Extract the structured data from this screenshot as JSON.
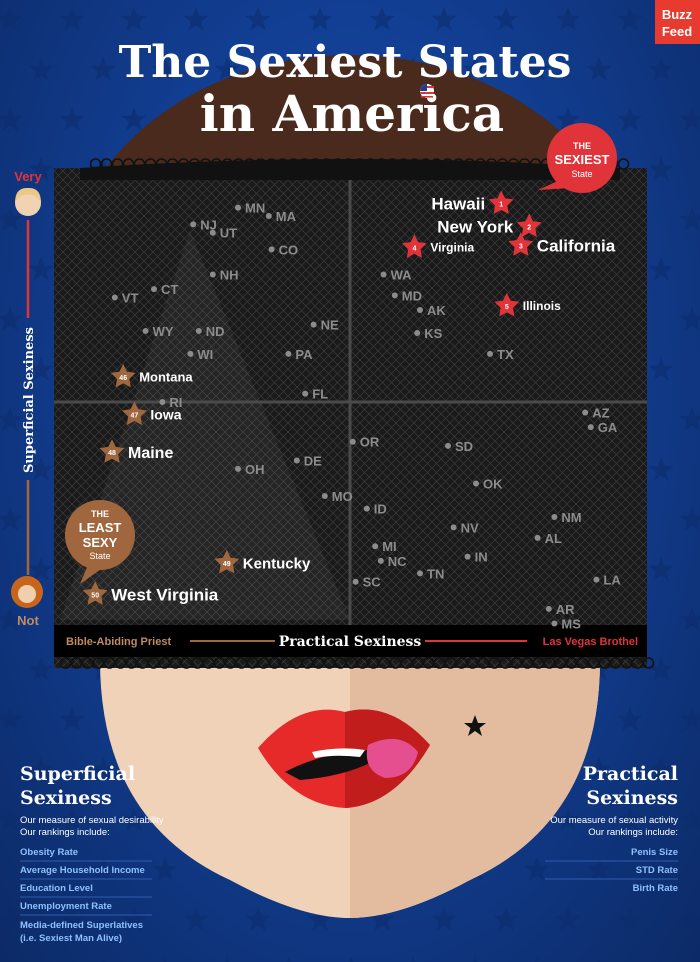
{
  "brand": [
    "Buzz",
    "Feed"
  ],
  "title_lines": [
    "The Sexiest States",
    "in America"
  ],
  "chart_data": {
    "type": "scatter",
    "title": "The Sexiest States in America",
    "xlabel": "Practical Sexiness",
    "x_left_label": "Bible-Abiding Priest",
    "x_right_label": "Las Vegas Brothel",
    "ylabel": "Superficial Sexiness",
    "y_top_label": "Very",
    "y_bottom_label": "Not",
    "annotations": [
      {
        "lines": [
          "THE",
          "SEXIEST",
          "State"
        ],
        "target": "Hawaii"
      },
      {
        "lines": [
          "THE",
          "LEAST",
          "SEXY",
          "State"
        ],
        "target": "West Virginia"
      }
    ],
    "points": [
      {
        "state": "Hawaii",
        "x": 0.54,
        "y": 0.95,
        "rank": 1
      },
      {
        "state": "New York",
        "x": 0.64,
        "y": 0.84,
        "rank": 2
      },
      {
        "state": "California",
        "x": 0.61,
        "y": 0.75,
        "rank": 3
      },
      {
        "state": "Virginia",
        "x": 0.23,
        "y": 0.74,
        "rank": 4
      },
      {
        "state": "Illinois",
        "x": 0.56,
        "y": 0.46,
        "rank": 5
      },
      {
        "state": "Montana",
        "x": -0.81,
        "y": 0.12,
        "rank": 46
      },
      {
        "state": "Iowa",
        "x": -0.77,
        "y": -0.06,
        "rank": 47
      },
      {
        "state": "Maine",
        "x": -0.85,
        "y": -0.24,
        "rank": 48
      },
      {
        "state": "Kentucky",
        "x": -0.44,
        "y": -0.77,
        "rank": 49
      },
      {
        "state": "West Virginia",
        "x": -0.91,
        "y": -0.92,
        "rank": 50
      },
      {
        "state": "MN",
        "x": -0.4,
        "y": 0.93
      },
      {
        "state": "MA",
        "x": -0.29,
        "y": 0.89
      },
      {
        "state": "NJ",
        "x": -0.56,
        "y": 0.85
      },
      {
        "state": "UT",
        "x": -0.49,
        "y": 0.81
      },
      {
        "state": "CO",
        "x": -0.28,
        "y": 0.73
      },
      {
        "state": "NH",
        "x": -0.49,
        "y": 0.61
      },
      {
        "state": "CT",
        "x": -0.7,
        "y": 0.54
      },
      {
        "state": "VT",
        "x": -0.84,
        "y": 0.5
      },
      {
        "state": "WA",
        "x": 0.12,
        "y": 0.61
      },
      {
        "state": "MD",
        "x": 0.16,
        "y": 0.51
      },
      {
        "state": "AK",
        "x": 0.25,
        "y": 0.44
      },
      {
        "state": "KS",
        "x": 0.24,
        "y": 0.33
      },
      {
        "state": "WY",
        "x": -0.73,
        "y": 0.34
      },
      {
        "state": "ND",
        "x": -0.54,
        "y": 0.34
      },
      {
        "state": "NE",
        "x": -0.13,
        "y": 0.37
      },
      {
        "state": "WI",
        "x": -0.57,
        "y": 0.23
      },
      {
        "state": "PA",
        "x": -0.22,
        "y": 0.23
      },
      {
        "state": "TX",
        "x": 0.5,
        "y": 0.23
      },
      {
        "state": "FL",
        "x": -0.16,
        "y": 0.04
      },
      {
        "state": "RI",
        "x": -0.67,
        "y": 0.0
      },
      {
        "state": "AZ",
        "x": 0.84,
        "y": -0.05
      },
      {
        "state": "GA",
        "x": 0.86,
        "y": -0.12
      },
      {
        "state": "OR",
        "x": 0.01,
        "y": -0.19
      },
      {
        "state": "SD",
        "x": 0.35,
        "y": -0.21
      },
      {
        "state": "DE",
        "x": -0.19,
        "y": -0.28
      },
      {
        "state": "OH",
        "x": -0.4,
        "y": -0.32
      },
      {
        "state": "OK",
        "x": 0.45,
        "y": -0.39
      },
      {
        "state": "MO",
        "x": -0.09,
        "y": -0.45
      },
      {
        "state": "ID",
        "x": 0.06,
        "y": -0.51
      },
      {
        "state": "NM",
        "x": 0.73,
        "y": -0.55
      },
      {
        "state": "NV",
        "x": 0.37,
        "y": -0.6
      },
      {
        "state": "AL",
        "x": 0.67,
        "y": -0.65
      },
      {
        "state": "MI",
        "x": 0.09,
        "y": -0.69
      },
      {
        "state": "IN",
        "x": 0.42,
        "y": -0.74
      },
      {
        "state": "NC",
        "x": 0.11,
        "y": -0.76
      },
      {
        "state": "TN",
        "x": 0.25,
        "y": -0.82
      },
      {
        "state": "SC",
        "x": 0.02,
        "y": -0.86
      },
      {
        "state": "LA",
        "x": 0.88,
        "y": -0.85
      },
      {
        "state": "AR",
        "x": 0.71,
        "y": -0.99
      },
      {
        "state": "MS",
        "x": 0.73,
        "y": -1.06
      }
    ]
  },
  "left_panel": {
    "heading": [
      "Superficial",
      "Sexiness"
    ],
    "desc": [
      "Our measure of sexual desirability",
      "Our rankings include:"
    ],
    "items": [
      "Obesity Rate",
      "Average Household Income",
      "Education Level",
      "Unemployment Rate",
      "Media-defined Superlatives",
      "(i.e. Sexiest Man Alive)"
    ]
  },
  "right_panel": {
    "heading": [
      "Practical",
      "Sexiness"
    ],
    "desc": [
      "Our measure of sexual activity",
      "Our rankings include:"
    ],
    "items": [
      "Penis Size",
      "STD Rate",
      "Birth Rate"
    ]
  },
  "colors": {
    "red": "#e0343a",
    "brown": "#a0673f",
    "blue_bg": "#123f94",
    "face": "#f0d2b8",
    "lips": "#e62a2a"
  }
}
